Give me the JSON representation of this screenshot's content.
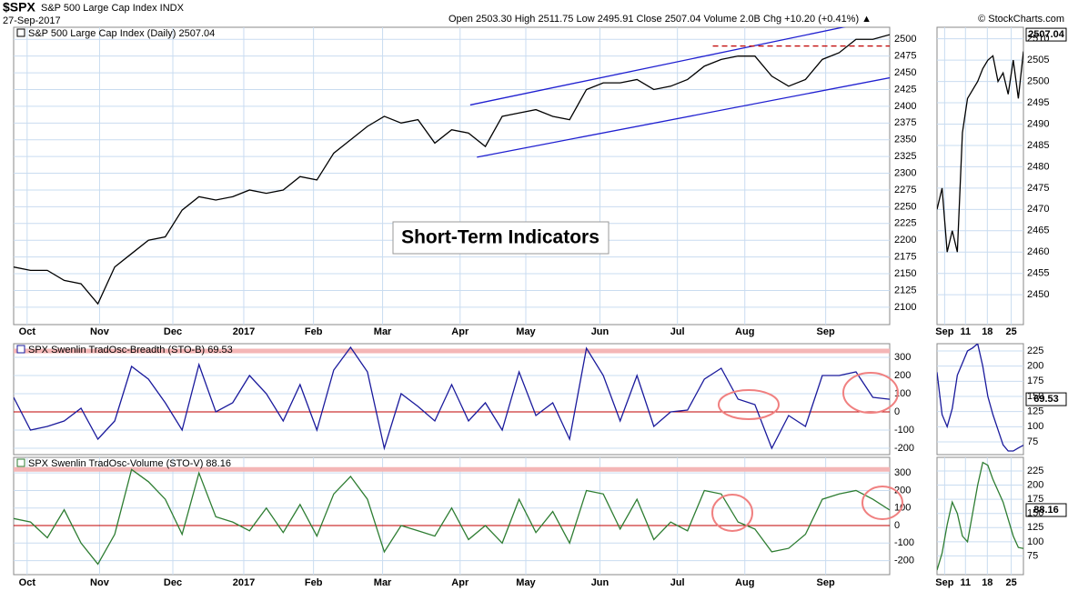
{
  "chart_data": [
    {
      "type": "line",
      "title": "$SPX",
      "subtitle": "S&P 500 Large Cap Index  INDX",
      "date": "27-Sep-2017",
      "quote": "Open 2503.30  High 2511.75  Low 2495.91  Close 2507.04  Volume 2.0B  Chg +10.20 (+0.41%) ▲",
      "credit": "© StockCharts.com",
      "annotation": "Short-Term Indicators",
      "last_label": "2507.04",
      "x": [
        0,
        1,
        2,
        3,
        4,
        5,
        6,
        7,
        8,
        9,
        10,
        11,
        12,
        13,
        14,
        15,
        16,
        17,
        18,
        19,
        20,
        21,
        22,
        23,
        24,
        25,
        26,
        27,
        28,
        29,
        30,
        31,
        32,
        33,
        34,
        35,
        36,
        37,
        38,
        39,
        40,
        41,
        42,
        43,
        44,
        45,
        46,
        47,
        48,
        49,
        50,
        51,
        52
      ],
      "series": [
        {
          "name": "S&P 500 Large Cap Index (Daily) 2507.04",
          "color": "#000000",
          "values": [
            2160,
            2155,
            2155,
            2140,
            2135,
            2105,
            2160,
            2180,
            2200,
            2205,
            2245,
            2265,
            2260,
            2265,
            2275,
            2270,
            2275,
            2295,
            2290,
            2330,
            2350,
            2370,
            2385,
            2375,
            2380,
            2345,
            2365,
            2360,
            2340,
            2385,
            2390,
            2395,
            2385,
            2380,
            2425,
            2435,
            2435,
            2440,
            2425,
            2430,
            2440,
            2460,
            2470,
            2475,
            2475,
            2445,
            2430,
            2440,
            2470,
            2480,
            2500,
            2500,
            2507.04
          ]
        }
      ],
      "trendlines": [
        {
          "x": [
            27.1,
            51.7
          ],
          "y": [
            2402,
            2531
          ],
          "color": "#1f1fd0",
          "dashed": false
        },
        {
          "x": [
            27.5,
            52.1
          ],
          "y": [
            2324,
            2443
          ],
          "color": "#1f1fd0",
          "dashed": false
        },
        {
          "x": [
            41.5,
            52
          ],
          "y": [
            2490,
            2490
          ],
          "color": "#c00000",
          "dashed": true
        }
      ],
      "xlim": [
        0,
        52
      ],
      "ylim": [
        2074,
        2518
      ],
      "xticks": [
        {
          "value": 0.8,
          "label": "Oct"
        },
        {
          "value": 5.1,
          "label": "Nov"
        },
        {
          "value": 9.45,
          "label": "Dec"
        },
        {
          "value": 13.66,
          "label": "2017"
        },
        {
          "value": 17.8,
          "label": "Feb"
        },
        {
          "value": 21.9,
          "label": "Mar"
        },
        {
          "value": 26.5,
          "label": "Apr"
        },
        {
          "value": 30.4,
          "label": "May"
        },
        {
          "value": 34.8,
          "label": "Jun"
        },
        {
          "value": 39.4,
          "label": "Jul"
        },
        {
          "value": 43.4,
          "label": "Aug"
        },
        {
          "value": 48.2,
          "label": "Sep"
        }
      ],
      "yticks": [
        2100,
        2125,
        2150,
        2175,
        2200,
        2225,
        2250,
        2275,
        2300,
        2325,
        2350,
        2375,
        2400,
        2425,
        2450,
        2475,
        2500
      ],
      "grid": true
    },
    {
      "type": "line",
      "x": [
        0,
        1,
        2,
        3,
        4,
        5,
        6,
        7,
        8,
        9,
        10,
        11,
        12,
        13,
        14,
        15,
        16,
        17
      ],
      "series": [
        {
          "color": "#000000",
          "values": [
            2470,
            2475,
            2460,
            2465,
            2460,
            2488,
            2496,
            2498,
            2500,
            2503,
            2505,
            2506,
            2500,
            2502,
            2497,
            2505,
            2496,
            2507.04
          ]
        }
      ],
      "xlim": [
        0,
        17
      ],
      "ylim": [
        2443,
        2512.7
      ],
      "xticks": [
        {
          "value": 1.5,
          "label": "Sep"
        },
        {
          "value": 5.6,
          "label": "11"
        },
        {
          "value": 9.9,
          "label": "18"
        },
        {
          "value": 14.6,
          "label": "25"
        }
      ],
      "yticks": [
        2450,
        2455,
        2460,
        2465,
        2470,
        2475,
        2480,
        2485,
        2490,
        2495,
        2500,
        2505,
        2510
      ],
      "grid": true
    },
    {
      "type": "line",
      "x": [
        0,
        1,
        2,
        3,
        4,
        5,
        6,
        7,
        8,
        9,
        10,
        11,
        12,
        13,
        14,
        15,
        16,
        17,
        18,
        19,
        20,
        21,
        22,
        23,
        24,
        25,
        26,
        27,
        28,
        29,
        30,
        31,
        32,
        33,
        34,
        35,
        36,
        37,
        38,
        39,
        40,
        41,
        42,
        43,
        44,
        45,
        46,
        47,
        48,
        49,
        50,
        51,
        52
      ],
      "series": [
        {
          "name": "SPX Swenlin TradOsc-Breadth (STO-B) 69.53",
          "color": "#1a1a9c",
          "values": [
            80,
            -100,
            -80,
            -50,
            20,
            -150,
            -50,
            250,
            180,
            50,
            -100,
            260,
            0,
            50,
            200,
            100,
            -50,
            150,
            -100,
            230,
            355,
            220,
            -200,
            100,
            30,
            -50,
            150,
            -50,
            50,
            -100,
            220,
            -20,
            50,
            -150,
            350,
            200,
            -50,
            200,
            -80,
            0,
            10,
            180,
            240,
            70,
            40,
            -200,
            -20,
            -80,
            200,
            200,
            220,
            80,
            69.53
          ]
        }
      ],
      "hlines": [
        {
          "value": 0,
          "color": "#c00000",
          "width": 1
        },
        {
          "value": 335,
          "color": "#f4b6b6",
          "width": 5
        }
      ],
      "xlim": [
        0,
        52
      ],
      "ylim": [
        -235,
        375
      ],
      "yticks": [
        -200,
        -100,
        0,
        100,
        200,
        300
      ],
      "grid": true,
      "last_label": "69.53"
    },
    {
      "type": "line",
      "x": [
        0,
        1,
        2,
        3,
        4,
        5,
        6,
        7,
        8,
        9,
        10,
        11,
        12,
        13,
        14,
        15,
        16,
        17
      ],
      "series": [
        {
          "color": "#1a1a9c",
          "values": [
            190,
            120,
            100,
            130,
            185,
            205,
            225,
            230,
            237,
            200,
            150,
            120,
            95,
            70,
            60,
            60,
            65,
            69.53
          ]
        }
      ],
      "xlim": [
        0,
        17
      ],
      "ylim": [
        54,
        237
      ],
      "yticks": [
        75,
        100,
        125,
        150,
        175,
        200,
        225
      ],
      "grid": true
    },
    {
      "type": "line",
      "x": [
        0,
        1,
        2,
        3,
        4,
        5,
        6,
        7,
        8,
        9,
        10,
        11,
        12,
        13,
        14,
        15,
        16,
        17,
        18,
        19,
        20,
        21,
        22,
        23,
        24,
        25,
        26,
        27,
        28,
        29,
        30,
        31,
        32,
        33,
        34,
        35,
        36,
        37,
        38,
        39,
        40,
        41,
        42,
        43,
        44,
        45,
        46,
        47,
        48,
        49,
        50,
        51,
        52
      ],
      "series": [
        {
          "name": "SPX Swenlin TradOsc-Volume (STO-V) 88.16",
          "color": "#2e7d32",
          "values": [
            40,
            20,
            -70,
            90,
            -100,
            -220,
            -50,
            320,
            250,
            150,
            -50,
            300,
            50,
            20,
            -30,
            100,
            -40,
            120,
            -60,
            180,
            280,
            150,
            -150,
            0,
            -30,
            -60,
            100,
            -80,
            0,
            -100,
            150,
            -40,
            80,
            -100,
            200,
            180,
            -20,
            150,
            -80,
            20,
            -30,
            200,
            180,
            20,
            -20,
            -150,
            -130,
            -50,
            150,
            180,
            200,
            150,
            88.16
          ]
        }
      ],
      "hlines": [
        {
          "value": 0,
          "color": "#c00000",
          "width": 1
        },
        {
          "value": 320,
          "color": "#f4b6b6",
          "width": 5
        }
      ],
      "xlim": [
        0,
        52
      ],
      "ylim": [
        -280,
        389
      ],
      "xticks": [
        {
          "value": 0.8,
          "label": "Oct"
        },
        {
          "value": 5.1,
          "label": "Nov"
        },
        {
          "value": 9.45,
          "label": "Dec"
        },
        {
          "value": 13.66,
          "label": "2017"
        },
        {
          "value": 17.8,
          "label": "Feb"
        },
        {
          "value": 21.9,
          "label": "Mar"
        },
        {
          "value": 26.5,
          "label": "Apr"
        },
        {
          "value": 30.4,
          "label": "May"
        },
        {
          "value": 34.8,
          "label": "Jun"
        },
        {
          "value": 39.4,
          "label": "Jul"
        },
        {
          "value": 43.4,
          "label": "Aug"
        },
        {
          "value": 48.2,
          "label": "Sep"
        }
      ],
      "yticks": [
        -200,
        -100,
        0,
        100,
        200,
        300
      ],
      "grid": true,
      "last_label": "88.16"
    },
    {
      "type": "line",
      "x": [
        0,
        1,
        2,
        3,
        4,
        5,
        6,
        7,
        8,
        9,
        10,
        11,
        12,
        13,
        14,
        15,
        16,
        17
      ],
      "series": [
        {
          "color": "#2e7d32",
          "values": [
            50,
            80,
            130,
            170,
            150,
            110,
            100,
            150,
            200,
            240,
            235,
            210,
            190,
            170,
            140,
            110,
            90,
            88.16
          ]
        }
      ],
      "xlim": [
        0,
        17
      ],
      "ylim": [
        42,
        249
      ],
      "xticks": [
        {
          "value": 1.5,
          "label": "Sep"
        },
        {
          "value": 5.6,
          "label": "11"
        },
        {
          "value": 9.9,
          "label": "18"
        },
        {
          "value": 14.6,
          "label": "25"
        }
      ],
      "yticks": [
        75,
        100,
        125,
        150,
        175,
        200,
        225
      ],
      "grid": true
    }
  ]
}
